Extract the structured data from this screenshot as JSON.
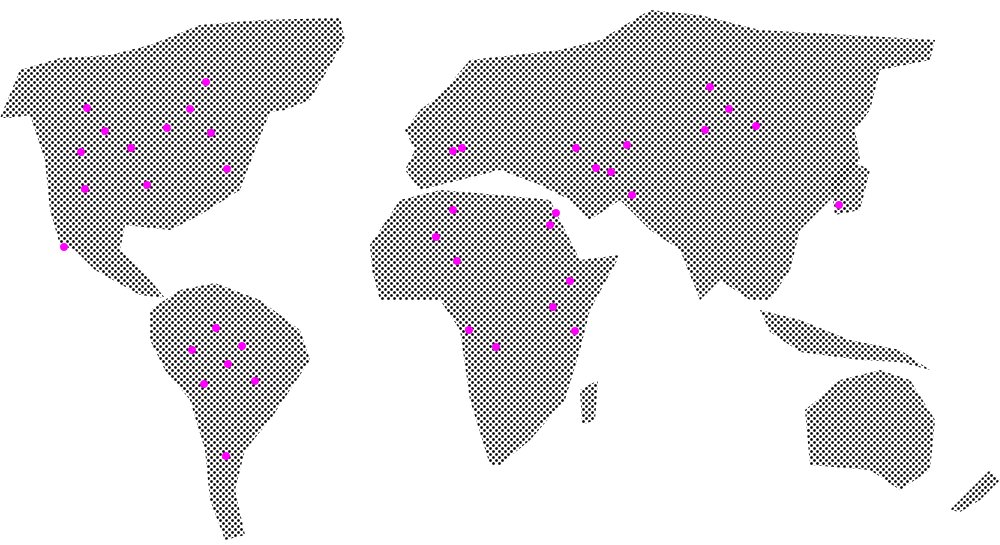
{
  "map": {
    "style": "dotted world map",
    "land_color": "#000000",
    "background_color": "#ffffff",
    "marker_color": "#ff00ff",
    "regions": [
      "north-america",
      "south-america",
      "eurasia",
      "africa",
      "japan",
      "southeast-asia-islands",
      "australia",
      "new-zealand",
      "madagascar"
    ]
  }
}
